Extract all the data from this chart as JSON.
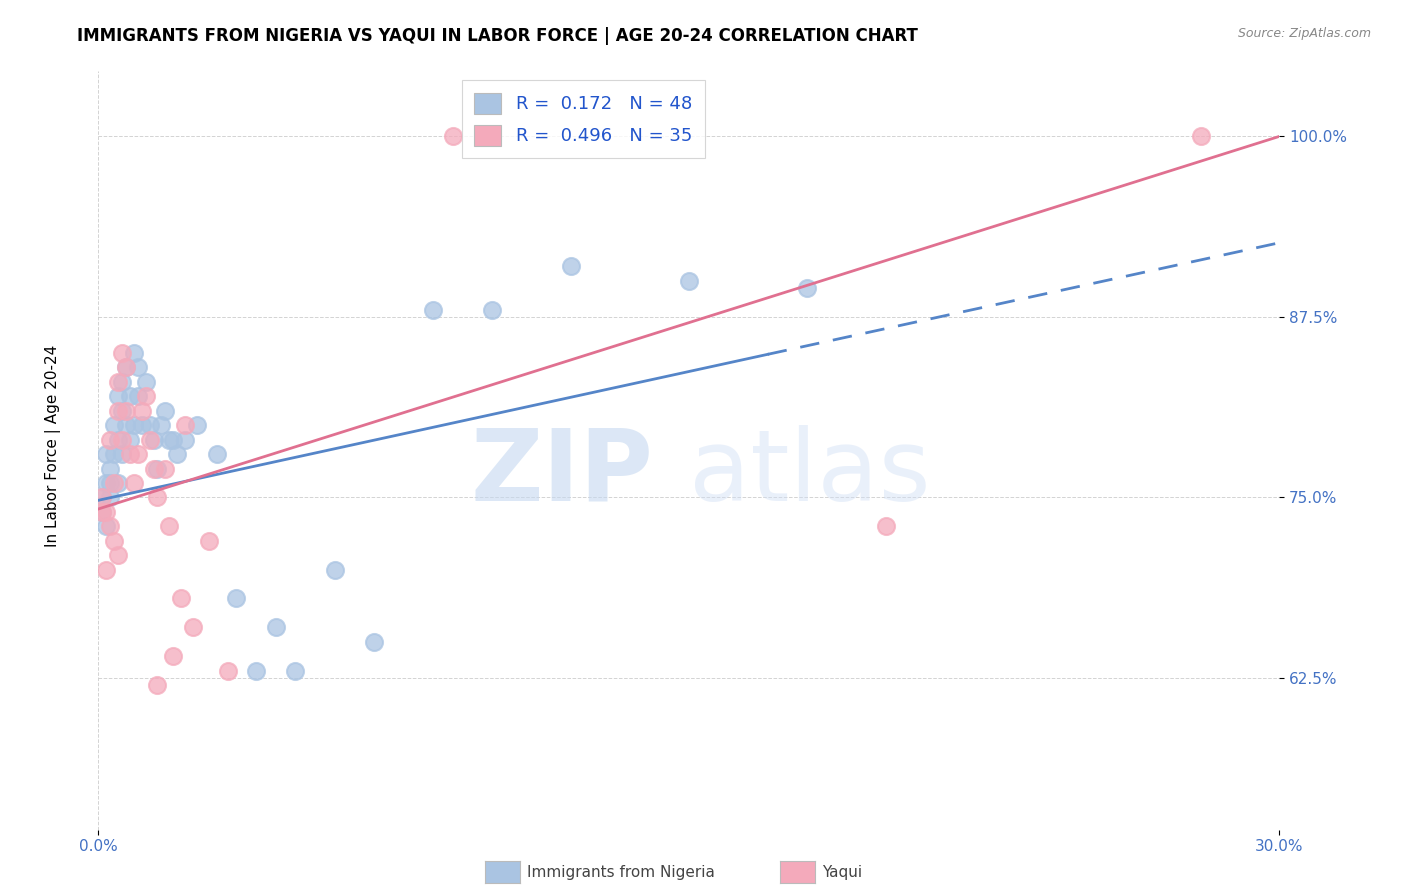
{
  "title": "IMMIGRANTS FROM NIGERIA VS YAQUI IN LABOR FORCE | AGE 20-24 CORRELATION CHART",
  "source": "Source: ZipAtlas.com",
  "ylabel": "In Labor Force | Age 20-24",
  "xlim": [
    0.0,
    0.3
  ],
  "ylim": [
    0.52,
    1.045
  ],
  "xticks": [
    0.0,
    0.3
  ],
  "xticklabels": [
    "0.0%",
    "30.0%"
  ],
  "yticks": [
    0.625,
    0.75,
    0.875,
    1.0
  ],
  "yticklabels": [
    "62.5%",
    "75.0%",
    "87.5%",
    "100.0%"
  ],
  "nigeria_color": "#aac4e2",
  "yaqui_color": "#f4aabb",
  "nigeria_line_color": "#5585c8",
  "yaqui_line_color": "#e07090",
  "nigeria_R": 0.172,
  "nigeria_N": 48,
  "yaqui_R": 0.496,
  "yaqui_N": 35,
  "watermark_zip": "ZIP",
  "watermark_atlas": "atlas",
  "nigeria_x": [
    0.001,
    0.001,
    0.002,
    0.002,
    0.002,
    0.003,
    0.003,
    0.003,
    0.004,
    0.004,
    0.005,
    0.005,
    0.005,
    0.006,
    0.006,
    0.006,
    0.007,
    0.007,
    0.008,
    0.008,
    0.009,
    0.009,
    0.01,
    0.01,
    0.011,
    0.012,
    0.013,
    0.014,
    0.015,
    0.016,
    0.017,
    0.018,
    0.019,
    0.02,
    0.022,
    0.025,
    0.03,
    0.035,
    0.04,
    0.05,
    0.06,
    0.085,
    0.1,
    0.12,
    0.15,
    0.18,
    0.045,
    0.07
  ],
  "nigeria_y": [
    0.75,
    0.74,
    0.76,
    0.73,
    0.78,
    0.75,
    0.77,
    0.76,
    0.8,
    0.78,
    0.82,
    0.79,
    0.76,
    0.83,
    0.81,
    0.78,
    0.84,
    0.8,
    0.79,
    0.82,
    0.85,
    0.8,
    0.82,
    0.84,
    0.8,
    0.83,
    0.8,
    0.79,
    0.77,
    0.8,
    0.81,
    0.79,
    0.79,
    0.78,
    0.79,
    0.8,
    0.78,
    0.68,
    0.63,
    0.63,
    0.7,
    0.88,
    0.88,
    0.91,
    0.9,
    0.895,
    0.66,
    0.65
  ],
  "yaqui_x": [
    0.001,
    0.001,
    0.002,
    0.002,
    0.003,
    0.003,
    0.004,
    0.004,
    0.005,
    0.005,
    0.005,
    0.006,
    0.006,
    0.007,
    0.007,
    0.008,
    0.009,
    0.01,
    0.011,
    0.012,
    0.013,
    0.014,
    0.015,
    0.017,
    0.019,
    0.021,
    0.024,
    0.028,
    0.033,
    0.015,
    0.022,
    0.018,
    0.09,
    0.2,
    0.28
  ],
  "yaqui_y": [
    0.75,
    0.74,
    0.74,
    0.7,
    0.73,
    0.79,
    0.72,
    0.76,
    0.83,
    0.81,
    0.71,
    0.85,
    0.79,
    0.84,
    0.81,
    0.78,
    0.76,
    0.78,
    0.81,
    0.82,
    0.79,
    0.77,
    0.75,
    0.77,
    0.64,
    0.68,
    0.66,
    0.72,
    0.63,
    0.62,
    0.8,
    0.73,
    1.0,
    0.73,
    1.0
  ],
  "title_fontsize": 12,
  "axis_label_fontsize": 11,
  "tick_fontsize": 11,
  "legend_fontsize": 13
}
